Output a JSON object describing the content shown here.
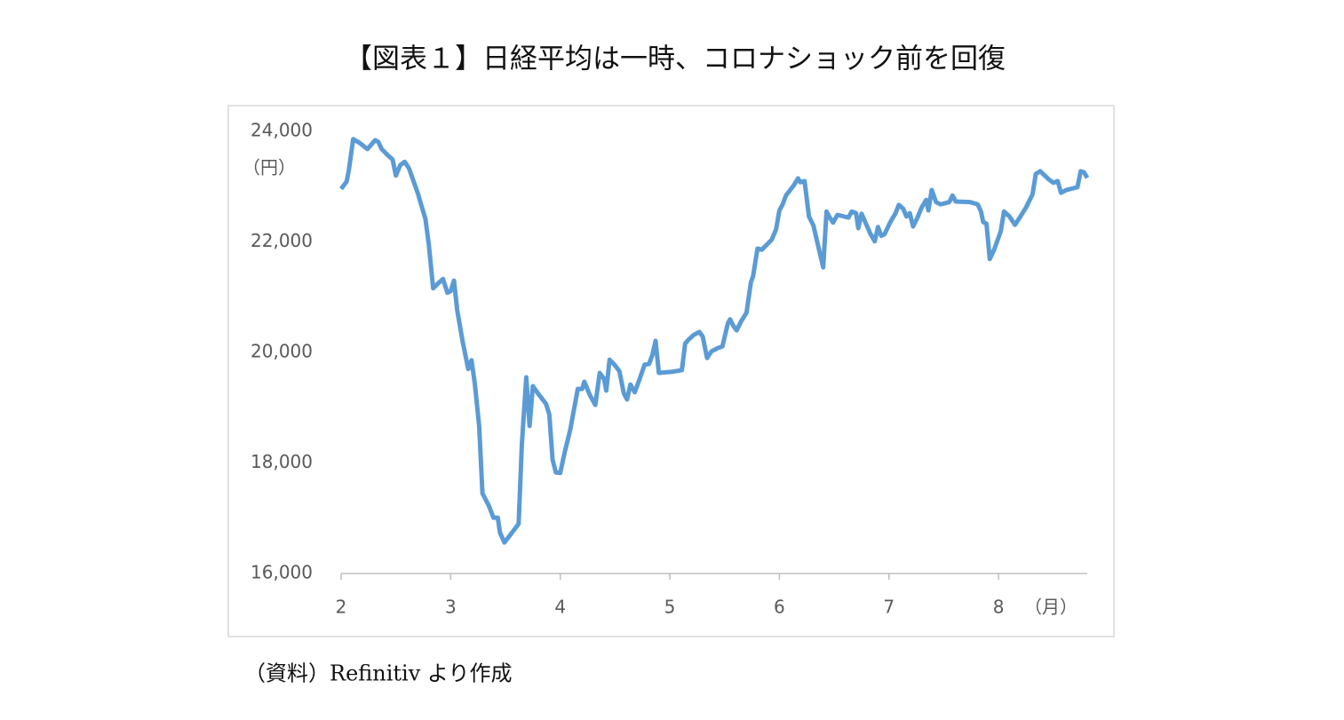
{
  "chart_data": {
    "type": "line",
    "title": "【図表１】日経平均は一時、コロナショック前を回復",
    "y_label": "（円）",
    "x_label": "（月）",
    "source": "（資料）Refinitiv より作成",
    "xlim": [
      2,
      8.81
    ],
    "xticks": [
      2,
      3,
      4,
      5,
      6,
      7,
      8
    ],
    "ylim": [
      16000,
      24000
    ],
    "yticks": [
      {
        "value": 16000,
        "label": "16,000"
      },
      {
        "value": 18000,
        "label": "18,000"
      },
      {
        "value": 20000,
        "label": "20,000"
      },
      {
        "value": 22000,
        "label": "22,000"
      },
      {
        "value": 24000,
        "label": "24,000"
      }
    ],
    "grid": false,
    "series": [
      {
        "name": "日経平均",
        "color": "#5b9bd5",
        "x": [
          2.0,
          2.05,
          2.07,
          2.11,
          2.17,
          2.24,
          2.31,
          2.34,
          2.37,
          2.42,
          2.47,
          2.5,
          2.54,
          2.58,
          2.62,
          2.7,
          2.77,
          2.8,
          2.84,
          2.88,
          2.93,
          2.97,
          3.0,
          3.03,
          3.06,
          3.11,
          3.16,
          3.19,
          3.22,
          3.26,
          3.29,
          3.35,
          3.39,
          3.43,
          3.45,
          3.49,
          3.56,
          3.62,
          3.65,
          3.69,
          3.72,
          3.75,
          3.8,
          3.87,
          3.9,
          3.93,
          3.96,
          4.0,
          4.04,
          4.09,
          4.16,
          4.2,
          4.22,
          4.27,
          4.32,
          4.36,
          4.4,
          4.42,
          4.45,
          4.49,
          4.54,
          4.58,
          4.61,
          4.64,
          4.68,
          4.73,
          4.77,
          4.81,
          4.84,
          4.87,
          4.9,
          5.02,
          5.11,
          5.14,
          5.17,
          5.22,
          5.27,
          5.3,
          5.34,
          5.38,
          5.44,
          5.48,
          5.53,
          5.55,
          5.58,
          5.61,
          5.65,
          5.7,
          5.74,
          5.76,
          5.8,
          5.84,
          5.88,
          5.93,
          5.97,
          6.0,
          6.03,
          6.06,
          6.13,
          6.17,
          6.19,
          6.23,
          6.27,
          6.31,
          6.35,
          6.4,
          6.43,
          6.46,
          6.49,
          6.53,
          6.59,
          6.63,
          6.66,
          6.7,
          6.72,
          6.75,
          6.79,
          6.83,
          6.87,
          6.9,
          6.93,
          6.96,
          7.01,
          7.06,
          7.09,
          7.13,
          7.16,
          7.19,
          7.22,
          7.26,
          7.3,
          7.34,
          7.36,
          7.39,
          7.43,
          7.47,
          7.55,
          7.58,
          7.61,
          7.74,
          7.81,
          7.84,
          7.86,
          7.89,
          7.92,
          7.96,
          8.02,
          8.05,
          8.1,
          8.15,
          8.2,
          8.25,
          8.31,
          8.34,
          8.38,
          8.46,
          8.5,
          8.54,
          8.57,
          8.62,
          8.72,
          8.75,
          8.78,
          8.81
        ],
        "values": [
          22960,
          23090,
          23290,
          23860,
          23790,
          23680,
          23840,
          23810,
          23680,
          23580,
          23490,
          23200,
          23390,
          23450,
          23330,
          22880,
          22410,
          21960,
          21160,
          21240,
          21330,
          21080,
          21110,
          21300,
          20760,
          20190,
          19700,
          19860,
          19440,
          18670,
          17450,
          17220,
          17010,
          17010,
          16740,
          16560,
          16740,
          16900,
          18350,
          19550,
          18670,
          19390,
          19250,
          19070,
          18880,
          18060,
          17830,
          17820,
          18190,
          18590,
          19340,
          19340,
          19470,
          19230,
          19050,
          19630,
          19520,
          19310,
          19870,
          19790,
          19660,
          19260,
          19150,
          19420,
          19280,
          19550,
          19780,
          19790,
          19950,
          20210,
          19630,
          19650,
          19680,
          20160,
          20230,
          20320,
          20370,
          20290,
          19900,
          20020,
          20080,
          20110,
          20530,
          20600,
          20480,
          20400,
          20560,
          20720,
          21270,
          21380,
          21880,
          21860,
          21940,
          22040,
          22230,
          22570,
          22680,
          22840,
          23020,
          23150,
          23080,
          23100,
          22460,
          22300,
          21960,
          21540,
          22550,
          22440,
          22350,
          22490,
          22460,
          22440,
          22550,
          22520,
          22250,
          22510,
          22330,
          22150,
          22010,
          22270,
          22110,
          22140,
          22350,
          22520,
          22670,
          22600,
          22460,
          22520,
          22280,
          22440,
          22630,
          22760,
          22570,
          22940,
          22720,
          22680,
          22720,
          22840,
          22730,
          22720,
          22680,
          22550,
          22360,
          22330,
          21690,
          21860,
          22190,
          22550,
          22460,
          22310,
          22460,
          22620,
          22860,
          23230,
          23280,
          23130,
          23070,
          23100,
          22890,
          22940,
          22990,
          23280,
          23260,
          23160
        ]
      }
    ]
  }
}
